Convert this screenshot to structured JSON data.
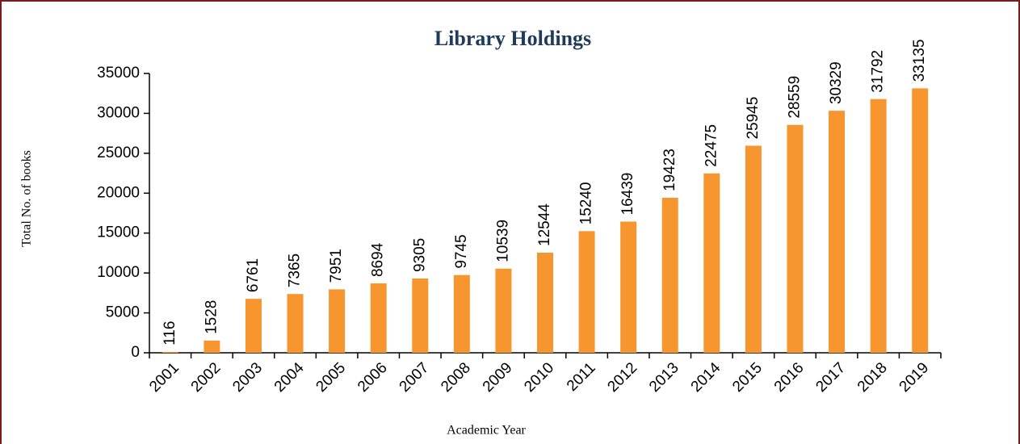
{
  "chart_data": {
    "type": "bar",
    "title": "Library Holdings",
    "y_label": "Total No. of books",
    "x_label": "Academic Year",
    "categories": [
      "2001",
      "2002",
      "2003",
      "2004",
      "2005",
      "2006",
      "2007",
      "2008",
      "2009",
      "2010",
      "2011",
      "2012",
      "2013",
      "2014",
      "2015",
      "2016",
      "2017",
      "2018",
      "2019"
    ],
    "values": [
      116,
      1528,
      6761,
      7365,
      7951,
      8694,
      9305,
      9745,
      10539,
      12544,
      15240,
      16439,
      19423,
      22475,
      25945,
      28559,
      30329,
      31792,
      33135
    ],
    "color": "#f7962e",
    "ylim": [
      0,
      35000
    ],
    "yticks": [
      0,
      5000,
      10000,
      15000,
      20000,
      25000,
      30000,
      35000
    ],
    "grid": false
  }
}
